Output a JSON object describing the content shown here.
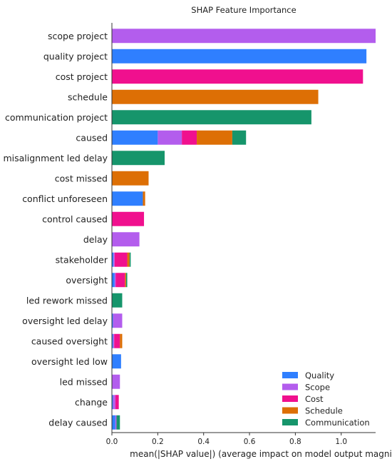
{
  "chart_data": {
    "type": "bar",
    "orientation": "horizontal",
    "stacked": true,
    "title": "SHAP Feature Importance",
    "xlabel": "mean(|SHAP value|) (average impact on model output magnitude)",
    "ylabel": "",
    "xlim": [
      0,
      1.15
    ],
    "xticks": [
      "0.0",
      "0.2",
      "0.4",
      "0.6",
      "0.8",
      "1.0"
    ],
    "grid": false,
    "legend_position": "bottom-right",
    "categories": [
      "scope project",
      "quality project",
      "cost project",
      "schedule",
      "communication project",
      "caused",
      "misalignment led delay",
      "cost missed",
      "conflict unforeseen",
      "control caused",
      "delay",
      "stakeholder",
      "oversight",
      "led rework missed",
      "oversight led delay",
      "caused oversight",
      "oversight led low",
      "led missed",
      "change",
      "delay caused"
    ],
    "series": [
      {
        "name": "Quality",
        "color": "#2f7fff",
        "values": [
          0,
          1.11,
          0,
          0,
          0,
          0.2,
          0,
          0,
          0.135,
          0,
          0,
          0.007,
          0.012,
          0,
          0.005,
          0.005,
          0.04,
          0,
          0.005,
          0.015
        ]
      },
      {
        "name": "Scope",
        "color": "#b35ded",
        "values": [
          1.15,
          0,
          0,
          0,
          0,
          0.105,
          0,
          0,
          0,
          0,
          0.12,
          0.005,
          0.005,
          0,
          0.04,
          0.005,
          0,
          0.035,
          0.01,
          0.005
        ]
      },
      {
        "name": "Cost",
        "color": "#f0108e",
        "values": [
          0,
          0,
          1.095,
          0,
          0,
          0.065,
          0,
          0,
          0,
          0.14,
          0,
          0.055,
          0.04,
          0,
          0,
          0.025,
          0,
          0,
          0.015,
          0
        ]
      },
      {
        "name": "Schedule",
        "color": "#dd6f05",
        "values": [
          0,
          0,
          0,
          0.9,
          0,
          0.155,
          0,
          0.16,
          0.01,
          0,
          0,
          0.01,
          0.005,
          0,
          0,
          0.01,
          0,
          0,
          0,
          0
        ]
      },
      {
        "name": "Communication",
        "color": "#16956b",
        "values": [
          0,
          0,
          0,
          0,
          0.87,
          0.06,
          0.23,
          0,
          0,
          0,
          0,
          0.005,
          0.005,
          0.045,
          0,
          0,
          0,
          0,
          0,
          0.015
        ]
      }
    ]
  }
}
